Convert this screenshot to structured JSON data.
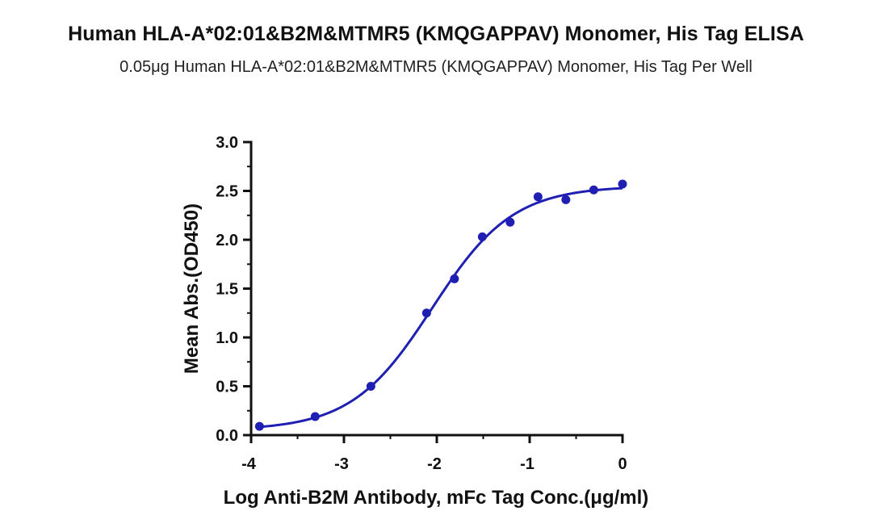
{
  "chart_data": {
    "type": "scatter",
    "title": "Human HLA-A*02:01&B2M&MTMR5 (KMQGAPPAV) Monomer, His Tag ELISA",
    "subtitle": "0.05μg Human HLA-A*02:01&B2M&MTMR5 (KMQGAPPAV) Monomer, His Tag Per Well",
    "xlabel": "Log Anti-B2M Antibody, mFc Tag Conc.(μg/ml)",
    "ylabel": "Mean Abs.(OD450)",
    "xlim": [
      -4,
      0
    ],
    "ylim": [
      0,
      3
    ],
    "x_ticks": [
      "-4",
      "-3",
      "-2",
      "-1",
      "0"
    ],
    "y_ticks": [
      "0.0",
      "0.5",
      "1.0",
      "1.5",
      "2.0",
      "2.5",
      "3.0"
    ],
    "grid": false,
    "colors": {
      "series": "#1f1fb4"
    },
    "series": [
      {
        "x": [
          -3.91,
          -3.31,
          -2.71,
          -2.11,
          -1.81,
          -1.51,
          -1.21,
          -0.91,
          -0.61,
          -0.31,
          0.0
        ],
        "y": [
          0.09,
          0.19,
          0.5,
          1.25,
          1.6,
          2.03,
          2.18,
          2.44,
          2.41,
          2.51,
          2.57
        ]
      }
    ],
    "fit_curve": {
      "model": "4PL",
      "bottom": 0.05,
      "top": 2.55,
      "log_ec50": -2.05,
      "hill": 1.0
    }
  }
}
